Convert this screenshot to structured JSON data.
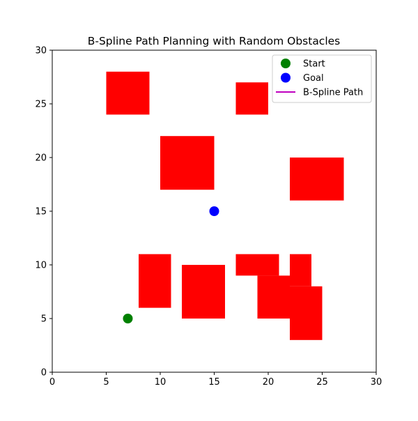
{
  "chart_data": {
    "type": "scatter",
    "title": "B-Spline Path Planning with Random Obstacles",
    "xlabel": "",
    "ylabel": "",
    "xlim": [
      0,
      30
    ],
    "ylim": [
      0,
      30
    ],
    "xticks": [
      0,
      5,
      10,
      15,
      20,
      25,
      30
    ],
    "yticks": [
      0,
      5,
      10,
      15,
      20,
      25,
      30
    ],
    "grid": false,
    "legend_position": "top-right",
    "obstacles": {
      "color": "#ff0000",
      "rects": [
        {
          "x": 5,
          "y": 24,
          "w": 4,
          "h": 4
        },
        {
          "x": 17,
          "y": 24,
          "w": 3,
          "h": 3
        },
        {
          "x": 10,
          "y": 17,
          "w": 5,
          "h": 5
        },
        {
          "x": 22,
          "y": 16,
          "w": 5,
          "h": 4
        },
        {
          "x": 8,
          "y": 6,
          "w": 3,
          "h": 5
        },
        {
          "x": 12,
          "y": 5,
          "w": 4,
          "h": 5
        },
        {
          "x": 17,
          "y": 9,
          "w": 4,
          "h": 2
        },
        {
          "x": 19,
          "y": 5,
          "w": 3,
          "h": 4
        },
        {
          "x": 22,
          "y": 8,
          "w": 2,
          "h": 3
        },
        {
          "x": 22,
          "y": 3,
          "w": 3,
          "h": 5
        }
      ]
    },
    "start": {
      "name": "Start",
      "x": 7,
      "y": 5,
      "color": "#008000"
    },
    "goal": {
      "name": "Goal",
      "x": 15,
      "y": 15,
      "color": "#0000ff"
    },
    "path": {
      "name": "B-Spline Path",
      "color": "#bf00bf",
      "points": []
    },
    "legend": [
      {
        "label": "Start",
        "kind": "marker",
        "color": "#008000"
      },
      {
        "label": "Goal",
        "kind": "marker",
        "color": "#0000ff"
      },
      {
        "label": "B-Spline Path",
        "kind": "line",
        "color": "#bf00bf"
      }
    ]
  }
}
